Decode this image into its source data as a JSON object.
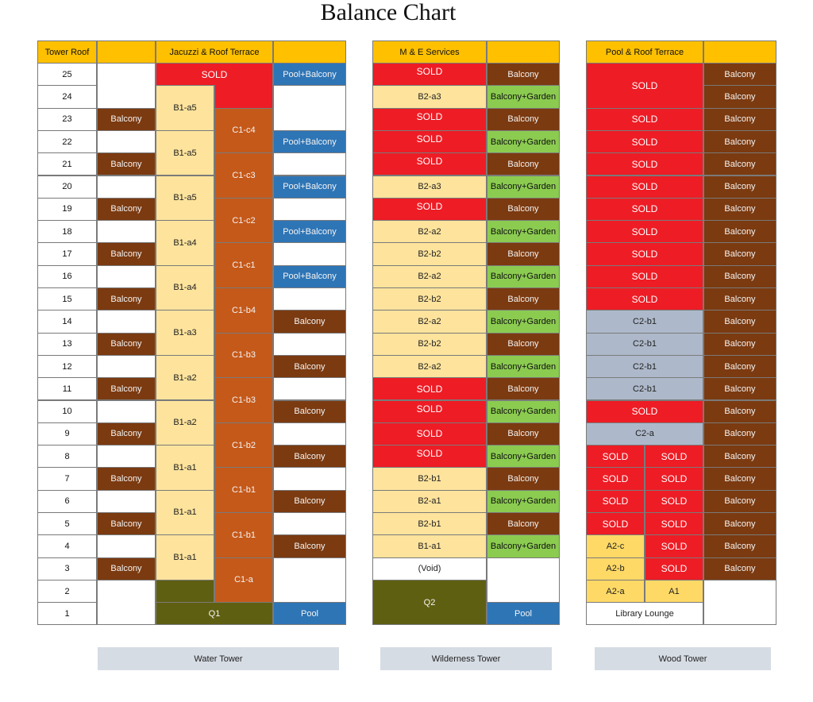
{
  "title": "Balance Chart",
  "colors": {
    "sold": "#ee1c25",
    "balcony": "#7b3a10",
    "pool_balcony": "#2e75b6",
    "balcony_garden": "#8bcb50",
    "unit_beige": "#fde39c",
    "unit_c1": "#c5591a",
    "q_olive": "#5f5f12",
    "header": "#ffc000",
    "c2_grey": "#adb9ca",
    "a_yellow": "#fed966",
    "tower_label_bg": "#d6dce4"
  },
  "headers": {
    "tower_roof": "Tower Roof",
    "water_roof": "Jacuzzi & Roof Terrace",
    "wilderness_roof": "M & E Services",
    "wood_roof": "Pool & Roof Terrace"
  },
  "floors": [
    "25",
    "24",
    "23",
    "22",
    "21",
    "20",
    "19",
    "18",
    "17",
    "16",
    "15",
    "14",
    "13",
    "12",
    "11",
    "10",
    "9",
    "8",
    "7",
    "6",
    "5",
    "4",
    "3",
    "2",
    "1"
  ],
  "towers": {
    "water": "Water Tower",
    "wilderness": "Wilderness Tower",
    "wood": "Wood Tower"
  },
  "water": {
    "left": [
      {
        "label": "",
        "kind": "white",
        "rows": [
          25,
          24
        ]
      },
      {
        "label": "Balcony",
        "kind": "balcony",
        "rows": [
          23
        ]
      },
      {
        "label": "",
        "kind": "white",
        "rows": [
          22
        ]
      },
      {
        "label": "Balcony",
        "kind": "balcony",
        "rows": [
          21
        ]
      },
      {
        "label": "",
        "kind": "white",
        "rows": [
          20
        ]
      },
      {
        "label": "Balcony",
        "kind": "balcony",
        "rows": [
          19
        ]
      },
      {
        "label": "",
        "kind": "white",
        "rows": [
          18
        ]
      },
      {
        "label": "Balcony",
        "kind": "balcony",
        "rows": [
          17
        ]
      },
      {
        "label": "",
        "kind": "white",
        "rows": [
          16
        ]
      },
      {
        "label": "Balcony",
        "kind": "balcony",
        "rows": [
          15
        ]
      },
      {
        "label": "",
        "kind": "white",
        "rows": [
          14
        ]
      },
      {
        "label": "Balcony",
        "kind": "balcony",
        "rows": [
          13
        ]
      },
      {
        "label": "",
        "kind": "white",
        "rows": [
          12
        ]
      },
      {
        "label": "Balcony",
        "kind": "balcony",
        "rows": [
          11
        ]
      },
      {
        "label": "",
        "kind": "white",
        "rows": [
          10
        ]
      },
      {
        "label": "Balcony",
        "kind": "balcony",
        "rows": [
          9
        ]
      },
      {
        "label": "",
        "kind": "white",
        "rows": [
          8
        ]
      },
      {
        "label": "Balcony",
        "kind": "balcony",
        "rows": [
          7
        ]
      },
      {
        "label": "",
        "kind": "white",
        "rows": [
          6
        ]
      },
      {
        "label": "Balcony",
        "kind": "balcony",
        "rows": [
          5
        ]
      },
      {
        "label": "",
        "kind": "white",
        "rows": [
          4
        ]
      },
      {
        "label": "Balcony",
        "kind": "balcony",
        "rows": [
          3
        ]
      },
      {
        "label": "",
        "kind": "white",
        "rows": [
          2,
          1
        ]
      }
    ],
    "units_b": [
      "B1-a5",
      "B1-a5",
      "B1-a5",
      "B1-a4",
      "B1-a4",
      "B1-a3",
      "B1-a2",
      "B1-a2",
      "B1-a1",
      "B1-a1",
      "B1-a1"
    ],
    "units_c": [
      "C1-c4",
      "C1-c3",
      "C1-c2",
      "C1-c1",
      "C1-b4",
      "C1-b3",
      "C1-b3",
      "C1-b2",
      "C1-b1",
      "C1-b1",
      "C1-a"
    ],
    "sold_top": "SOLD",
    "q1": "Q1",
    "right": [
      {
        "label": "Pool+Balcony",
        "kind": "pool",
        "rows": [
          25
        ]
      },
      {
        "label": "",
        "kind": "white",
        "rows": [
          24,
          23
        ]
      },
      {
        "label": "Pool+Balcony",
        "kind": "pool",
        "rows": [
          22
        ]
      },
      {
        "label": "",
        "kind": "white",
        "rows": [
          21
        ]
      },
      {
        "label": "Pool+Balcony",
        "kind": "pool",
        "rows": [
          20
        ]
      },
      {
        "label": "",
        "kind": "white",
        "rows": [
          19
        ]
      },
      {
        "label": "Pool+Balcony",
        "kind": "pool",
        "rows": [
          18
        ]
      },
      {
        "label": "",
        "kind": "white",
        "rows": [
          17
        ]
      },
      {
        "label": "Pool+Balcony",
        "kind": "pool",
        "rows": [
          16
        ]
      },
      {
        "label": "",
        "kind": "white",
        "rows": [
          15
        ]
      },
      {
        "label": "Balcony",
        "kind": "balcony",
        "rows": [
          14
        ]
      },
      {
        "label": "",
        "kind": "white",
        "rows": [
          13
        ]
      },
      {
        "label": "Balcony",
        "kind": "balcony",
        "rows": [
          12
        ]
      },
      {
        "label": "",
        "kind": "white",
        "rows": [
          11
        ]
      },
      {
        "label": "Balcony",
        "kind": "balcony",
        "rows": [
          10
        ]
      },
      {
        "label": "",
        "kind": "white",
        "rows": [
          9
        ]
      },
      {
        "label": "Balcony",
        "kind": "balcony",
        "rows": [
          8
        ]
      },
      {
        "label": "",
        "kind": "white",
        "rows": [
          7
        ]
      },
      {
        "label": "Balcony",
        "kind": "balcony",
        "rows": [
          6
        ]
      },
      {
        "label": "",
        "kind": "white",
        "rows": [
          5
        ]
      },
      {
        "label": "Balcony",
        "kind": "balcony",
        "rows": [
          4
        ]
      },
      {
        "label": "",
        "kind": "white",
        "rows": [
          3,
          2
        ]
      },
      {
        "label": "Pool",
        "kind": "pool",
        "rows": [
          1
        ]
      }
    ]
  },
  "wilderness": {
    "main": [
      {
        "label": "SOLD",
        "kind": "sold",
        "rows": [
          25
        ],
        "top": true
      },
      {
        "label": "B2-a3",
        "kind": "beige",
        "rows": [
          24
        ]
      },
      {
        "label": "SOLD",
        "kind": "sold",
        "rows": [
          23
        ],
        "top": true
      },
      {
        "label": "SOLD",
        "kind": "sold",
        "rows": [
          22
        ],
        "top": true
      },
      {
        "label": "SOLD",
        "kind": "sold",
        "rows": [
          21
        ],
        "top": true
      },
      {
        "label": "B2-a3",
        "kind": "beige",
        "rows": [
          20
        ]
      },
      {
        "label": "SOLD",
        "kind": "sold",
        "rows": [
          19
        ],
        "top": true
      },
      {
        "label": "B2-a2",
        "kind": "beige",
        "rows": [
          18
        ]
      },
      {
        "label": "B2-b2",
        "kind": "beige",
        "rows": [
          17
        ]
      },
      {
        "label": "B2-a2",
        "kind": "beige",
        "rows": [
          16
        ]
      },
      {
        "label": "B2-b2",
        "kind": "beige",
        "rows": [
          15
        ]
      },
      {
        "label": "B2-a2",
        "kind": "beige",
        "rows": [
          14
        ]
      },
      {
        "label": "B2-b2",
        "kind": "beige",
        "rows": [
          13
        ]
      },
      {
        "label": "B2-a2",
        "kind": "beige",
        "rows": [
          12
        ]
      },
      {
        "label": "SOLD",
        "kind": "sold",
        "rows": [
          11
        ]
      },
      {
        "label": "SOLD",
        "kind": "sold",
        "rows": [
          10
        ],
        "top": true
      },
      {
        "label": "SOLD",
        "kind": "sold",
        "rows": [
          9
        ]
      },
      {
        "label": "SOLD",
        "kind": "sold",
        "rows": [
          8
        ],
        "top": true
      },
      {
        "label": "B2-b1",
        "kind": "beige",
        "rows": [
          7
        ]
      },
      {
        "label": "B2-a1",
        "kind": "beige",
        "rows": [
          6
        ]
      },
      {
        "label": "B2-b1",
        "kind": "beige",
        "rows": [
          5
        ]
      },
      {
        "label": "B1-a1",
        "kind": "beige",
        "rows": [
          4
        ]
      },
      {
        "label": "(Void)",
        "kind": "white",
        "rows": [
          3
        ]
      },
      {
        "label": "Q2",
        "kind": "olive",
        "rows": [
          2,
          1
        ]
      }
    ],
    "right": [
      {
        "label": "Balcony",
        "kind": "balcony",
        "rows": [
          25
        ]
      },
      {
        "label": "Balcony+Garden",
        "kind": "bgd",
        "rows": [
          24
        ]
      },
      {
        "label": "Balcony",
        "kind": "balcony",
        "rows": [
          23
        ]
      },
      {
        "label": "Balcony+Garden",
        "kind": "bgd",
        "rows": [
          22
        ]
      },
      {
        "label": "Balcony",
        "kind": "balcony",
        "rows": [
          21
        ]
      },
      {
        "label": "Balcony+Garden",
        "kind": "bgd",
        "rows": [
          20
        ]
      },
      {
        "label": "Balcony",
        "kind": "balcony",
        "rows": [
          19
        ]
      },
      {
        "label": "Balcony+Garden",
        "kind": "bgd",
        "rows": [
          18
        ]
      },
      {
        "label": "Balcony",
        "kind": "balcony",
        "rows": [
          17
        ]
      },
      {
        "label": "Balcony+Garden",
        "kind": "bgd",
        "rows": [
          16
        ]
      },
      {
        "label": "Balcony",
        "kind": "balcony",
        "rows": [
          15
        ]
      },
      {
        "label": "Balcony+Garden",
        "kind": "bgd",
        "rows": [
          14
        ]
      },
      {
        "label": "Balcony",
        "kind": "balcony",
        "rows": [
          13
        ]
      },
      {
        "label": "Balcony+Garden",
        "kind": "bgd",
        "rows": [
          12
        ]
      },
      {
        "label": "Balcony",
        "kind": "balcony",
        "rows": [
          11
        ]
      },
      {
        "label": "Balcony+Garden",
        "kind": "bgd",
        "rows": [
          10
        ]
      },
      {
        "label": "Balcony",
        "kind": "balcony",
        "rows": [
          9
        ]
      },
      {
        "label": "Balcony+Garden",
        "kind": "bgd",
        "rows": [
          8
        ]
      },
      {
        "label": "Balcony",
        "kind": "balcony",
        "rows": [
          7
        ]
      },
      {
        "label": "Balcony+Garden",
        "kind": "bgd",
        "rows": [
          6
        ]
      },
      {
        "label": "Balcony",
        "kind": "balcony",
        "rows": [
          5
        ]
      },
      {
        "label": "Balcony+Garden",
        "kind": "bgd",
        "rows": [
          4
        ]
      },
      {
        "label": "",
        "kind": "white",
        "rows": [
          3,
          2
        ]
      },
      {
        "label": "Pool",
        "kind": "pool",
        "rows": [
          1
        ]
      }
    ]
  },
  "wood": {
    "main": [
      {
        "label": "SOLD",
        "kind": "sold",
        "rows": [
          25,
          24
        ],
        "span": "full"
      },
      {
        "label": "SOLD",
        "kind": "sold",
        "rows": [
          23
        ],
        "span": "full"
      },
      {
        "label": "SOLD",
        "kind": "sold",
        "rows": [
          22
        ],
        "span": "full"
      },
      {
        "label": "SOLD",
        "kind": "sold",
        "rows": [
          21
        ],
        "span": "full"
      },
      {
        "label": "SOLD",
        "kind": "sold",
        "rows": [
          20
        ],
        "span": "full"
      },
      {
        "label": "SOLD",
        "kind": "sold",
        "rows": [
          19
        ],
        "span": "full"
      },
      {
        "label": "SOLD",
        "kind": "sold",
        "rows": [
          18
        ],
        "span": "full"
      },
      {
        "label": "SOLD",
        "kind": "sold",
        "rows": [
          17
        ],
        "span": "full"
      },
      {
        "label": "SOLD",
        "kind": "sold",
        "rows": [
          16
        ],
        "span": "full"
      },
      {
        "label": "SOLD",
        "kind": "sold",
        "rows": [
          15
        ],
        "span": "full"
      },
      {
        "label": "C2-b1",
        "kind": "grey",
        "rows": [
          14
        ],
        "span": "full"
      },
      {
        "label": "C2-b1",
        "kind": "grey",
        "rows": [
          13
        ],
        "span": "full"
      },
      {
        "label": "C2-b1",
        "kind": "grey",
        "rows": [
          12
        ],
        "span": "full"
      },
      {
        "label": "C2-b1",
        "kind": "grey",
        "rows": [
          11
        ],
        "span": "full"
      },
      {
        "label": "SOLD",
        "kind": "sold",
        "rows": [
          10
        ],
        "span": "full"
      },
      {
        "label": "C2-a",
        "kind": "grey",
        "rows": [
          9
        ],
        "span": "full"
      },
      {
        "label": "SOLD",
        "kind": "sold",
        "rows": [
          8
        ],
        "span": "left"
      },
      {
        "label": "SOLD",
        "kind": "sold",
        "rows": [
          8
        ],
        "span": "right"
      },
      {
        "label": "SOLD",
        "kind": "sold",
        "rows": [
          7
        ],
        "span": "left"
      },
      {
        "label": "SOLD",
        "kind": "sold",
        "rows": [
          7
        ],
        "span": "right"
      },
      {
        "label": "SOLD",
        "kind": "sold",
        "rows": [
          6
        ],
        "span": "left"
      },
      {
        "label": "SOLD",
        "kind": "sold",
        "rows": [
          6
        ],
        "span": "right"
      },
      {
        "label": "SOLD",
        "kind": "sold",
        "rows": [
          5
        ],
        "span": "left"
      },
      {
        "label": "SOLD",
        "kind": "sold",
        "rows": [
          5
        ],
        "span": "right"
      },
      {
        "label": "A2-c",
        "kind": "a",
        "rows": [
          4
        ],
        "span": "left"
      },
      {
        "label": "SOLD",
        "kind": "sold",
        "rows": [
          4
        ],
        "span": "right"
      },
      {
        "label": "A2-b",
        "kind": "a",
        "rows": [
          3
        ],
        "span": "left"
      },
      {
        "label": "SOLD",
        "kind": "sold",
        "rows": [
          3
        ],
        "span": "right"
      },
      {
        "label": "A2-a",
        "kind": "a",
        "rows": [
          2
        ],
        "span": "left"
      },
      {
        "label": "A1",
        "kind": "a",
        "rows": [
          2
        ],
        "span": "right"
      },
      {
        "label": "Library Lounge",
        "kind": "white",
        "rows": [
          1
        ],
        "span": "full"
      }
    ],
    "right": [
      {
        "label": "Balcony",
        "kind": "balcony",
        "rows": [
          25
        ]
      },
      {
        "label": "Balcony",
        "kind": "balcony",
        "rows": [
          24
        ]
      },
      {
        "label": "Balcony",
        "kind": "balcony",
        "rows": [
          23
        ]
      },
      {
        "label": "Balcony",
        "kind": "balcony",
        "rows": [
          22
        ]
      },
      {
        "label": "Balcony",
        "kind": "balcony",
        "rows": [
          21
        ]
      },
      {
        "label": "Balcony",
        "kind": "balcony",
        "rows": [
          20
        ]
      },
      {
        "label": "Balcony",
        "kind": "balcony",
        "rows": [
          19
        ]
      },
      {
        "label": "Balcony",
        "kind": "balcony",
        "rows": [
          18
        ]
      },
      {
        "label": "Balcony",
        "kind": "balcony",
        "rows": [
          17
        ]
      },
      {
        "label": "Balcony",
        "kind": "balcony",
        "rows": [
          16
        ]
      },
      {
        "label": "Balcony",
        "kind": "balcony",
        "rows": [
          15
        ]
      },
      {
        "label": "Balcony",
        "kind": "balcony",
        "rows": [
          14
        ]
      },
      {
        "label": "Balcony",
        "kind": "balcony",
        "rows": [
          13
        ]
      },
      {
        "label": "Balcony",
        "kind": "balcony",
        "rows": [
          12
        ]
      },
      {
        "label": "Balcony",
        "kind": "balcony",
        "rows": [
          11
        ]
      },
      {
        "label": "Balcony",
        "kind": "balcony",
        "rows": [
          10
        ]
      },
      {
        "label": "Balcony",
        "kind": "balcony",
        "rows": [
          9
        ]
      },
      {
        "label": "Balcony",
        "kind": "balcony",
        "rows": [
          8
        ]
      },
      {
        "label": "Balcony",
        "kind": "balcony",
        "rows": [
          7
        ]
      },
      {
        "label": "Balcony",
        "kind": "balcony",
        "rows": [
          6
        ]
      },
      {
        "label": "Balcony",
        "kind": "balcony",
        "rows": [
          5
        ]
      },
      {
        "label": "Balcony",
        "kind": "balcony",
        "rows": [
          4
        ]
      },
      {
        "label": "Balcony",
        "kind": "balcony",
        "rows": [
          3
        ]
      },
      {
        "label": "",
        "kind": "white",
        "rows": [
          2,
          1
        ]
      }
    ]
  }
}
